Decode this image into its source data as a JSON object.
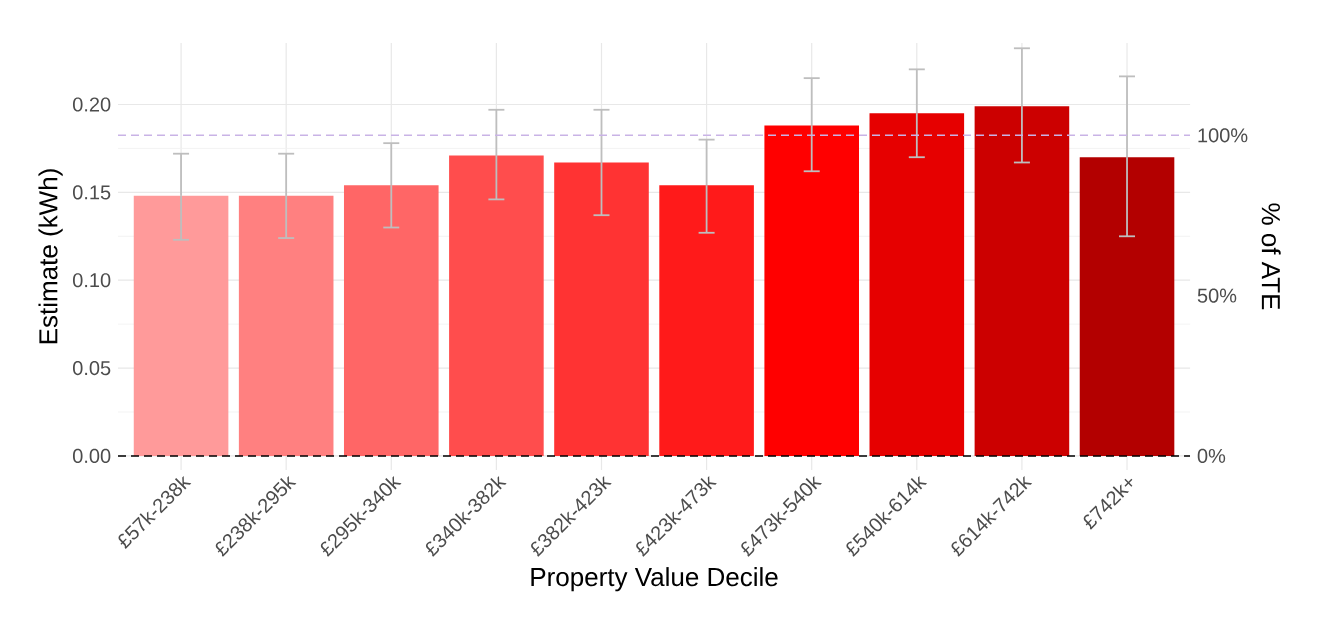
{
  "chart_data": {
    "type": "bar",
    "xlabel": "Property Value Decile",
    "ylabel": "Estimate (kWh)",
    "y2label": "% of ATE",
    "categories": [
      "£57k-238k",
      "£238k-295k",
      "£295k-340k",
      "£340k-382k",
      "£382k-423k",
      "£423k-473k",
      "£473k-540k",
      "£540k-614k",
      "£614k-742k",
      "£742k+"
    ],
    "values": [
      0.148,
      0.148,
      0.154,
      0.171,
      0.167,
      0.154,
      0.188,
      0.195,
      0.199,
      0.17
    ],
    "errors": [
      [
        0.123,
        0.172
      ],
      [
        0.124,
        0.172
      ],
      [
        0.13,
        0.178
      ],
      [
        0.146,
        0.197
      ],
      [
        0.137,
        0.197
      ],
      [
        0.127,
        0.18
      ],
      [
        0.162,
        0.215
      ],
      [
        0.17,
        0.22
      ],
      [
        0.167,
        0.232
      ],
      [
        0.125,
        0.216
      ]
    ],
    "colors": [
      "#ff9a9a",
      "#ff8080",
      "#ff6666",
      "#ff4d4d",
      "#ff3333",
      "#ff1a1a",
      "#ff0000",
      "#e60000",
      "#cc0000",
      "#b30000"
    ],
    "ylim": [
      -0.008,
      0.235
    ],
    "yticks": [
      {
        "value": 0,
        "label": "0.00"
      },
      {
        "value": 0.05,
        "label": "0.05"
      },
      {
        "value": 0.1,
        "label": "0.10"
      },
      {
        "value": 0.15,
        "label": "0.15"
      },
      {
        "value": 0.2,
        "label": "0.20"
      }
    ],
    "y2lim": [
      -4.4,
      128.8
    ],
    "y2ticks": [
      {
        "value": 0,
        "label": "0%"
      },
      {
        "value": 50,
        "label": "50%"
      },
      {
        "value": 100,
        "label": "100%"
      }
    ],
    "ref_lines": [
      {
        "axis": "y",
        "value": 0,
        "color": "#000000",
        "line_style": "dashed"
      },
      {
        "axis": "y",
        "value": 0.1825,
        "color": "#c9b3e6",
        "line_style": "dashed"
      }
    ],
    "grid": true
  }
}
